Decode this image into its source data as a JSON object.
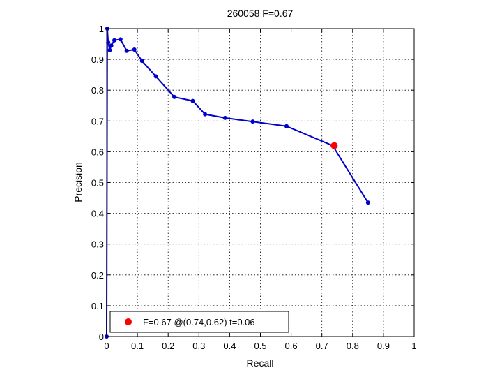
{
  "chart_data": {
    "type": "line",
    "title": "260058 F=0.67",
    "xlabel": "Recall",
    "ylabel": "Precision",
    "xlim": [
      0,
      1
    ],
    "ylim": [
      0,
      1
    ],
    "grid": true,
    "xticks": [
      "0",
      "0.1",
      "0.2",
      "0.3",
      "0.4",
      "0.5",
      "0.6",
      "0.7",
      "0.8",
      "0.9",
      "1"
    ],
    "yticks": [
      "0",
      "0.1",
      "0.2",
      "0.3",
      "0.4",
      "0.5",
      "0.6",
      "0.7",
      "0.8",
      "0.9",
      "1"
    ],
    "series": [
      {
        "color": "#0000cc",
        "x": [
          0,
          0.002,
          0.005,
          0.01,
          0.015,
          0.025,
          0.045,
          0.065,
          0.09,
          0.115,
          0.16,
          0.22,
          0.28,
          0.32,
          0.385,
          0.475,
          0.585,
          0.735,
          0.85
        ],
        "y": [
          0,
          1.0,
          0.955,
          0.93,
          0.945,
          0.962,
          0.965,
          0.928,
          0.932,
          0.895,
          0.845,
          0.778,
          0.765,
          0.722,
          0.71,
          0.698,
          0.683,
          0.62,
          0.435
        ]
      }
    ],
    "best_point": {
      "x": 0.74,
      "y": 0.62,
      "color": "#ff0000"
    },
    "legend": {
      "text": "F=0.67 @(0.74,0.62) t=0.06",
      "placement": "bottom-left"
    }
  }
}
